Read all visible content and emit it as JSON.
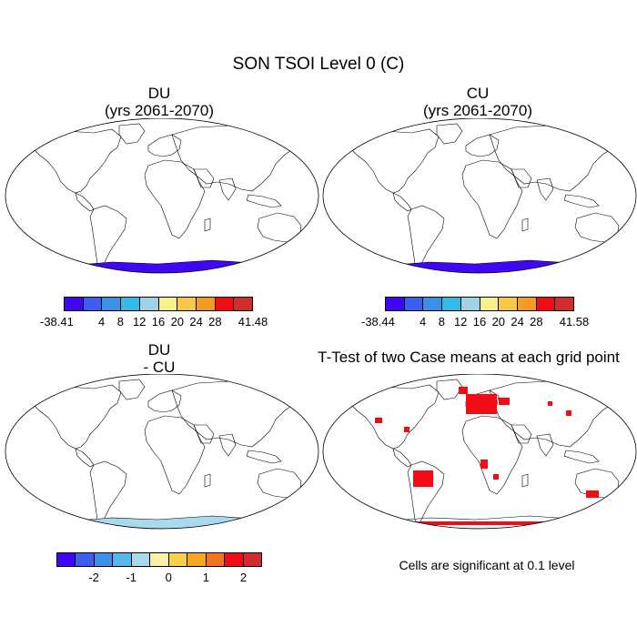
{
  "figure": {
    "title": "SON TSOI Level 0 (C)"
  },
  "panels": {
    "du": {
      "title": "DU",
      "subtitle": "(yrs 2061-2070)"
    },
    "cu": {
      "title": "CU",
      "subtitle": "(yrs 2061-2070)"
    },
    "diff": {
      "title": "DU",
      "subtitle": "- CU"
    },
    "ttest": {
      "title": "T-Test of two Case means at each grid point",
      "note": "Cells are significant at 0.1 level"
    }
  },
  "colorbars": {
    "abs_colors": [
      "#3f07f5",
      "#3b5ef0",
      "#3b90e8",
      "#35bbe8",
      "#9ed2e6",
      "#f7f08b",
      "#f9c846",
      "#f59a22",
      "#f30c15",
      "#d02d2e"
    ],
    "diff_colors": [
      "#3f07f5",
      "#3b5ef0",
      "#3b90e8",
      "#58b6ec",
      "#a9d9ef",
      "#f9f2a6",
      "#f9d149",
      "#f7a621",
      "#f1731d",
      "#f30c15",
      "#d02d2e"
    ],
    "du": {
      "labels": [
        "-38.41",
        "4",
        "8",
        "12",
        "16",
        "20",
        "24",
        "28",
        "41.48"
      ]
    },
    "cu": {
      "labels": [
        "-38.44",
        "4",
        "8",
        "12",
        "16",
        "20",
        "24",
        "28",
        "41.58"
      ]
    },
    "diff": {
      "labels": [
        "-2",
        "-1",
        "0",
        "1",
        "2"
      ]
    }
  }
}
